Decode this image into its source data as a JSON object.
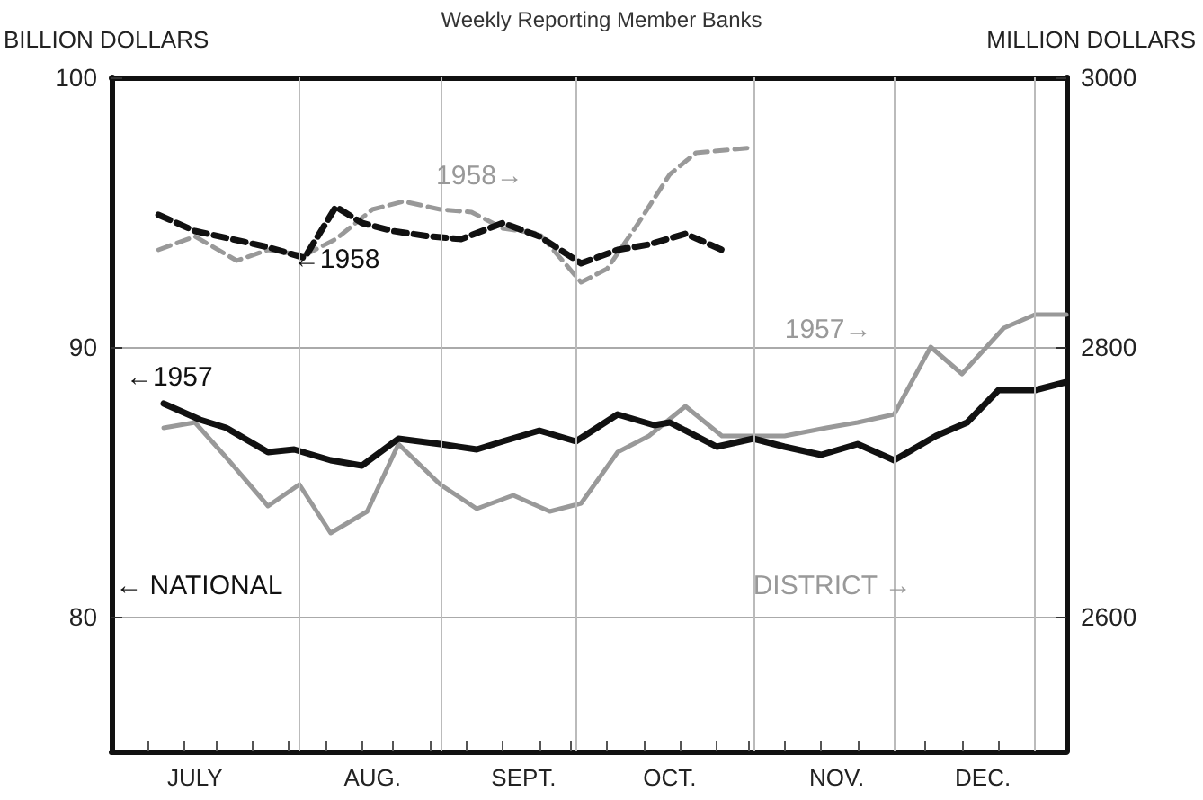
{
  "chart_data": {
    "type": "line",
    "title": "Weekly Reporting Member Banks",
    "ylabel": "BILLION DOLLARS",
    "y2label": "MILLION DOLLARS",
    "xlim": [
      "--07-01",
      "--12-31"
    ],
    "xticks": [
      {
        "value": "--07-08",
        "label": null
      },
      {
        "value": "--07-15",
        "label": null
      },
      {
        "value": "--07-21",
        "label": null
      },
      {
        "value": "--07-28",
        "label": null
      },
      {
        "value": "--08-04",
        "label": null
      },
      {
        "value": "--08-11",
        "label": null
      },
      {
        "value": "--08-18",
        "label": null
      },
      {
        "value": "--08-24",
        "label": null
      },
      {
        "value": "--08-31",
        "label": null
      },
      {
        "value": "--09-07",
        "label": null
      },
      {
        "value": "--09-14",
        "label": null
      },
      {
        "value": "--09-21",
        "label": null
      },
      {
        "value": "--09-27",
        "label": null
      },
      {
        "value": "--10-04",
        "label": null
      },
      {
        "value": "--10-11",
        "label": null
      },
      {
        "value": "--10-18",
        "label": null
      },
      {
        "value": "--10-25",
        "label": null
      },
      {
        "value": "--10-31",
        "label": null
      },
      {
        "value": "--11-07",
        "label": null
      },
      {
        "value": "--11-14",
        "label": null
      },
      {
        "value": "--11-21",
        "label": null
      },
      {
        "value": "--11-28",
        "label": null
      },
      {
        "value": "--12-04",
        "label": null
      },
      {
        "value": "--12-11",
        "label": null
      },
      {
        "value": "--12-18",
        "label": null
      },
      {
        "value": "--12-25",
        "label": null
      },
      {
        "value": "--07-17",
        "label": "JULY"
      },
      {
        "value": "--08-20",
        "label": "AUG."
      },
      {
        "value": "--09-18",
        "label": "SEPT."
      },
      {
        "value": "--10-16",
        "label": "OCT."
      },
      {
        "value": "--11-17",
        "label": "NOV."
      },
      {
        "value": "--12-15",
        "label": "DEC."
      }
    ],
    "ylim": [
      75,
      100
    ],
    "yticks": [
      80,
      90,
      100
    ],
    "y2lim": [
      2500,
      3000
    ],
    "y2ticks": [
      2600,
      2800,
      3000
    ],
    "grid": "y",
    "marker": "none",
    "ref_lines": [
      {
        "axis": "x",
        "value": "--08-06",
        "color": "#bbbbbb"
      },
      {
        "axis": "x",
        "value": "--09-02",
        "color": "#bbbbbb"
      },
      {
        "axis": "x",
        "value": "--09-28",
        "color": "#bbbbbb"
      },
      {
        "axis": "x",
        "value": "--11-01",
        "color": "#bbbbbb"
      },
      {
        "axis": "x",
        "value": "--11-28",
        "color": "#bbbbbb"
      },
      {
        "axis": "x",
        "value": "--12-25",
        "color": "#bbbbbb"
      }
    ],
    "series": [
      {
        "color": "#999999",
        "line_style": "solid",
        "axis": "y2",
        "x": [
          "--07-11",
          "--07-17",
          "--07-23",
          "--07-31",
          "--08-06",
          "--08-12",
          "--08-19",
          "--08-25",
          "--09-02",
          "--09-09",
          "--09-16",
          "--09-23",
          "--09-29",
          "--10-06",
          "--10-12",
          "--10-19",
          "--10-26",
          "--11-01",
          "--11-07",
          "--11-15",
          "--11-21",
          "--11-28",
          "--12-05",
          "--12-11",
          "--12-19",
          "--12-25",
          "--12-31"
        ],
        "values": [
          2740,
          2744,
          2718,
          2682,
          2698,
          2662,
          2678,
          2728,
          2698,
          2680,
          2690,
          2678,
          2684,
          2722,
          2734,
          2756,
          2734,
          2734,
          2734,
          2740,
          2744,
          2750,
          2800,
          2780,
          2814,
          2824,
          2824
        ]
      },
      {
        "color": "#999999",
        "line_style": "dashed",
        "axis": "y2",
        "x": [
          "--07-10",
          "--07-17",
          "--07-25",
          "--07-31",
          "--08-07",
          "--08-13",
          "--08-20",
          "--08-26",
          "--09-02",
          "--09-08",
          "--09-14",
          "--09-21",
          "--09-29",
          "--10-04",
          "--10-10",
          "--10-16",
          "--10-21",
          "--11-01"
        ],
        "values": [
          2872,
          2882,
          2864,
          2872,
          2868,
          2880,
          2902,
          2908,
          2902,
          2900,
          2888,
          2884,
          2848,
          2858,
          2892,
          2928,
          2944,
          2948
        ]
      },
      {
        "color": "#111111",
        "line_style": "solid",
        "x": [
          "--07-11",
          "--07-18",
          "--07-23",
          "--07-31",
          "--08-05",
          "--08-12",
          "--08-18",
          "--08-25",
          "--09-02",
          "--09-09",
          "--09-14",
          "--09-21",
          "--09-28",
          "--10-06",
          "--10-13",
          "--10-16",
          "--10-25",
          "--11-01",
          "--11-07",
          "--11-14",
          "--11-21",
          "--11-28",
          "--12-06",
          "--12-12",
          "--12-18",
          "--12-25",
          "--12-31"
        ],
        "values": [
          87.9,
          87.3,
          87.0,
          86.1,
          86.2,
          85.8,
          85.6,
          86.6,
          86.4,
          86.2,
          86.5,
          86.9,
          86.5,
          87.5,
          87.1,
          87.2,
          86.3,
          86.6,
          86.3,
          86.0,
          86.4,
          85.8,
          86.7,
          87.2,
          88.4,
          88.4,
          88.7
        ]
      },
      {
        "color": "#111111",
        "line_style": "dashed",
        "x": [
          "--07-10",
          "--07-17",
          "--07-24",
          "--07-31",
          "--08-07",
          "--08-13",
          "--08-18",
          "--08-24",
          "--08-31",
          "--09-06",
          "--09-14",
          "--09-21",
          "--09-29",
          "--10-06",
          "--10-12",
          "--10-19",
          "--10-26"
        ],
        "values": [
          94.9,
          94.3,
          94.0,
          93.7,
          93.3,
          95.2,
          94.6,
          94.3,
          94.1,
          94.0,
          94.6,
          94.1,
          93.1,
          93.6,
          93.8,
          94.2,
          93.6
        ]
      }
    ],
    "annotations": [
      "←1957",
      "←1958",
      "1958→",
      "1957→",
      "← NATIONAL",
      "DISTRICT →"
    ]
  }
}
